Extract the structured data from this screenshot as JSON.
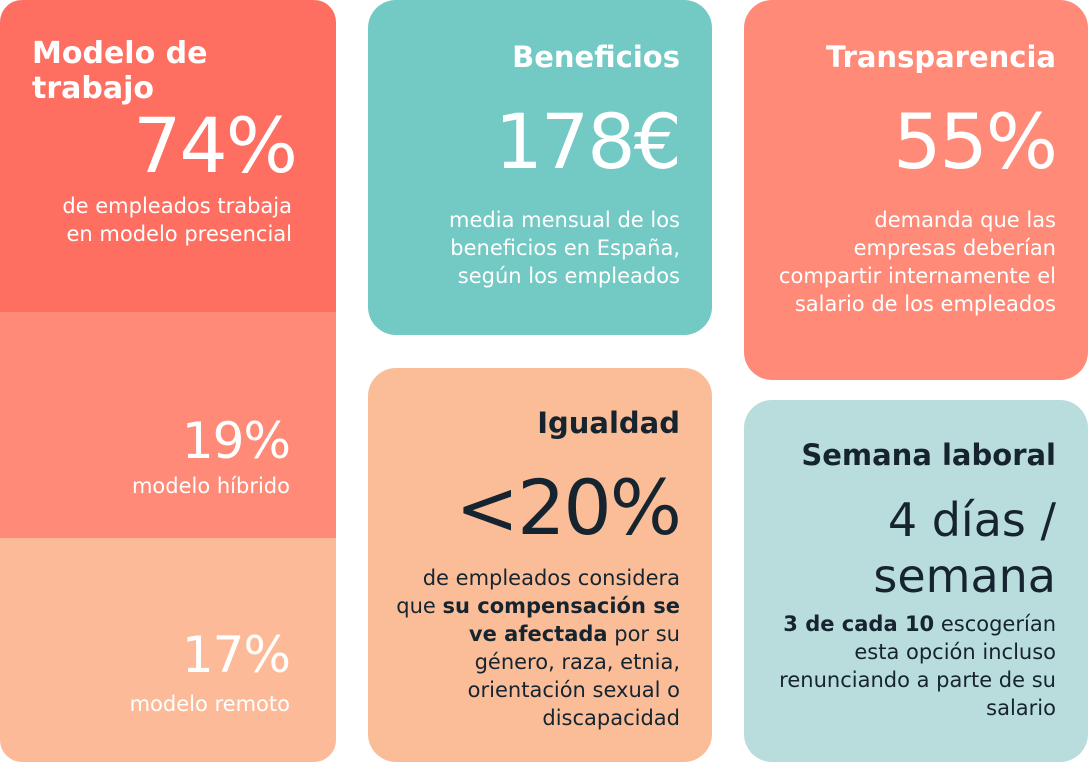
{
  "modelo": {
    "title": "Modelo de trabajo",
    "presencial": {
      "value": "74%",
      "text": "de empleados trabaja en modelo presencial"
    },
    "hibrido": {
      "value": "19%",
      "text": "modelo híbrido"
    },
    "remoto": {
      "value": "17%",
      "text": "modelo remoto"
    }
  },
  "beneficios": {
    "title": "Beneficios",
    "value": "178€",
    "text": "media mensual de los beneficios en España, según los empleados"
  },
  "transparencia": {
    "title": "Transparencia",
    "value": "55%",
    "text": "demanda que las empresas deberían compartir internamente el salario de los empleados"
  },
  "igualdad": {
    "title": "Igualdad",
    "value": "<20%",
    "text_before": "de empleados considera que ",
    "text_bold": "su compensación se ve afectada",
    "text_after": " por su género, raza, etnia, orientación sexual o discapacidad"
  },
  "semana": {
    "title": "Semana laboral",
    "value_line1": "4 días /",
    "value_line2": "semana",
    "text_bold": "3 de cada 10",
    "text_after": " escogerían esta opción incluso renunciando a parte de su salario"
  },
  "colors": {
    "coral": "#ff6f61",
    "salmon": "#ff8a78",
    "peach": "#fcba98",
    "teal": "#73c9c4",
    "light_teal": "#b9dcdc",
    "dark_text": "#15242f"
  }
}
